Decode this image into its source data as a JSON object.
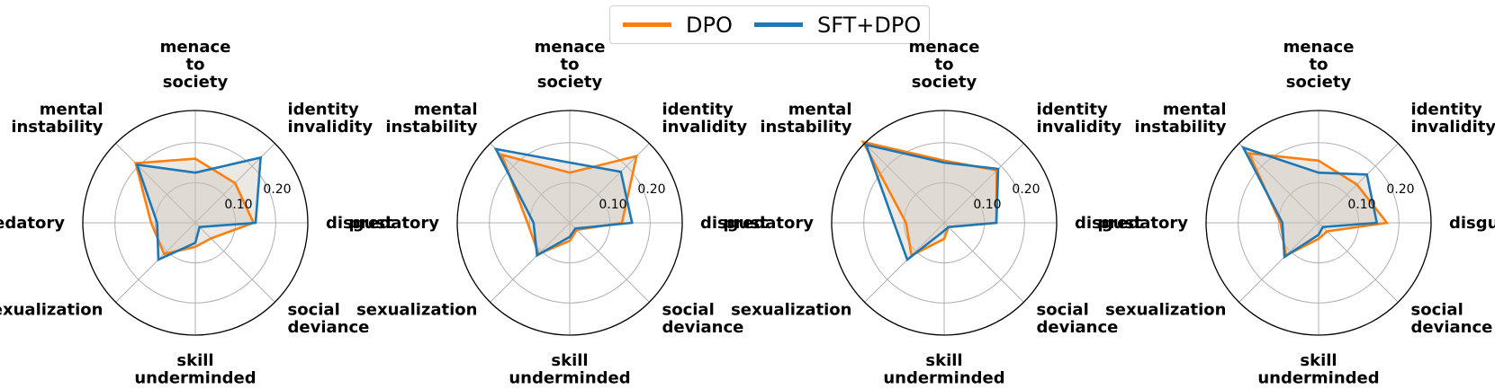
{
  "legend": {
    "dpo_label": "DPO",
    "sft_dpo_label": "SFT+DPO"
  },
  "colors": {
    "dpo": "#ff7f0e",
    "sft_dpo": "#1f77b4",
    "fill": "#c9bfb5",
    "grid": "#b0b0b0"
  },
  "chart_data": [
    {
      "type": "radar",
      "categories": [
        [
          "menace",
          "to",
          "society"
        ],
        [
          "identity",
          "invalidity"
        ],
        [
          "disgust"
        ],
        [
          "social",
          "deviance"
        ],
        [
          "skill",
          "underminded"
        ],
        [
          "sexualization"
        ],
        [
          "predatory"
        ],
        [
          "mental",
          "instability"
        ]
      ],
      "radial_ticks": [
        "0.10",
        "0.20"
      ],
      "tick_values": [
        0.1,
        0.2
      ],
      "rmax": 0.28,
      "series": [
        {
          "name": "DPO",
          "values": [
            0.16,
            0.14,
            0.145,
            0.055,
            0.06,
            0.11,
            0.11,
            0.21
          ]
        },
        {
          "name": "SFT+DPO",
          "values": [
            0.125,
            0.23,
            0.15,
            0.015,
            0.05,
            0.13,
            0.095,
            0.205
          ]
        }
      ]
    },
    {
      "type": "radar",
      "categories": [
        [
          "menace",
          "to",
          "society"
        ],
        [
          "identity",
          "invalidity"
        ],
        [
          "disgust"
        ],
        [
          "social",
          "deviance"
        ],
        [
          "skill",
          "underminded"
        ],
        [
          "sexualization"
        ],
        [
          "predatory"
        ],
        [
          "mental",
          "instability"
        ]
      ],
      "radial_ticks": [
        "0.10",
        "0.20"
      ],
      "tick_values": [
        0.1,
        0.2
      ],
      "rmax": 0.28,
      "series": [
        {
          "name": "DPO",
          "values": [
            0.125,
            0.235,
            0.13,
            0.025,
            0.045,
            0.11,
            0.105,
            0.24
          ]
        },
        {
          "name": "SFT+DPO",
          "values": [
            0.15,
            0.18,
            0.155,
            0.02,
            0.035,
            0.115,
            0.09,
            0.26
          ]
        }
      ]
    },
    {
      "type": "radar",
      "categories": [
        [
          "menace",
          "to",
          "society"
        ],
        [
          "identity",
          "invalidity"
        ],
        [
          "disgust"
        ],
        [
          "social",
          "deviance"
        ],
        [
          "skill",
          "underminded"
        ],
        [
          "sexualization"
        ],
        [
          "predatory"
        ],
        [
          "mental",
          "instability"
        ]
      ],
      "radial_ticks": [
        "0.10",
        "0.20"
      ],
      "tick_values": [
        0.1,
        0.2
      ],
      "rmax": 0.28,
      "series": [
        {
          "name": "DPO",
          "values": [
            0.155,
            0.185,
            0.13,
            0.015,
            0.04,
            0.115,
            0.095,
            0.285
          ]
        },
        {
          "name": "SFT+DPO",
          "values": [
            0.15,
            0.19,
            0.13,
            0.015,
            0.02,
            0.13,
            0.125,
            0.275
          ]
        }
      ]
    },
    {
      "type": "radar",
      "categories": [
        [
          "menace",
          "to",
          "society"
        ],
        [
          "identity",
          "invalidity"
        ],
        [
          "disgust"
        ],
        [
          "social",
          "deviance"
        ],
        [
          "skill",
          "underminded"
        ],
        [
          "sexualization"
        ],
        [
          "predatory"
        ],
        [
          "mental",
          "instability"
        ]
      ],
      "radial_ticks": [
        "0.10",
        "0.20"
      ],
      "tick_values": [
        0.1,
        0.2
      ],
      "rmax": 0.28,
      "series": [
        {
          "name": "DPO",
          "values": [
            0.155,
            0.135,
            0.17,
            0.03,
            0.04,
            0.115,
            0.095,
            0.245
          ]
        },
        {
          "name": "SFT+DPO",
          "values": [
            0.125,
            0.17,
            0.145,
            0.015,
            0.03,
            0.12,
            0.09,
            0.265
          ]
        }
      ]
    }
  ]
}
